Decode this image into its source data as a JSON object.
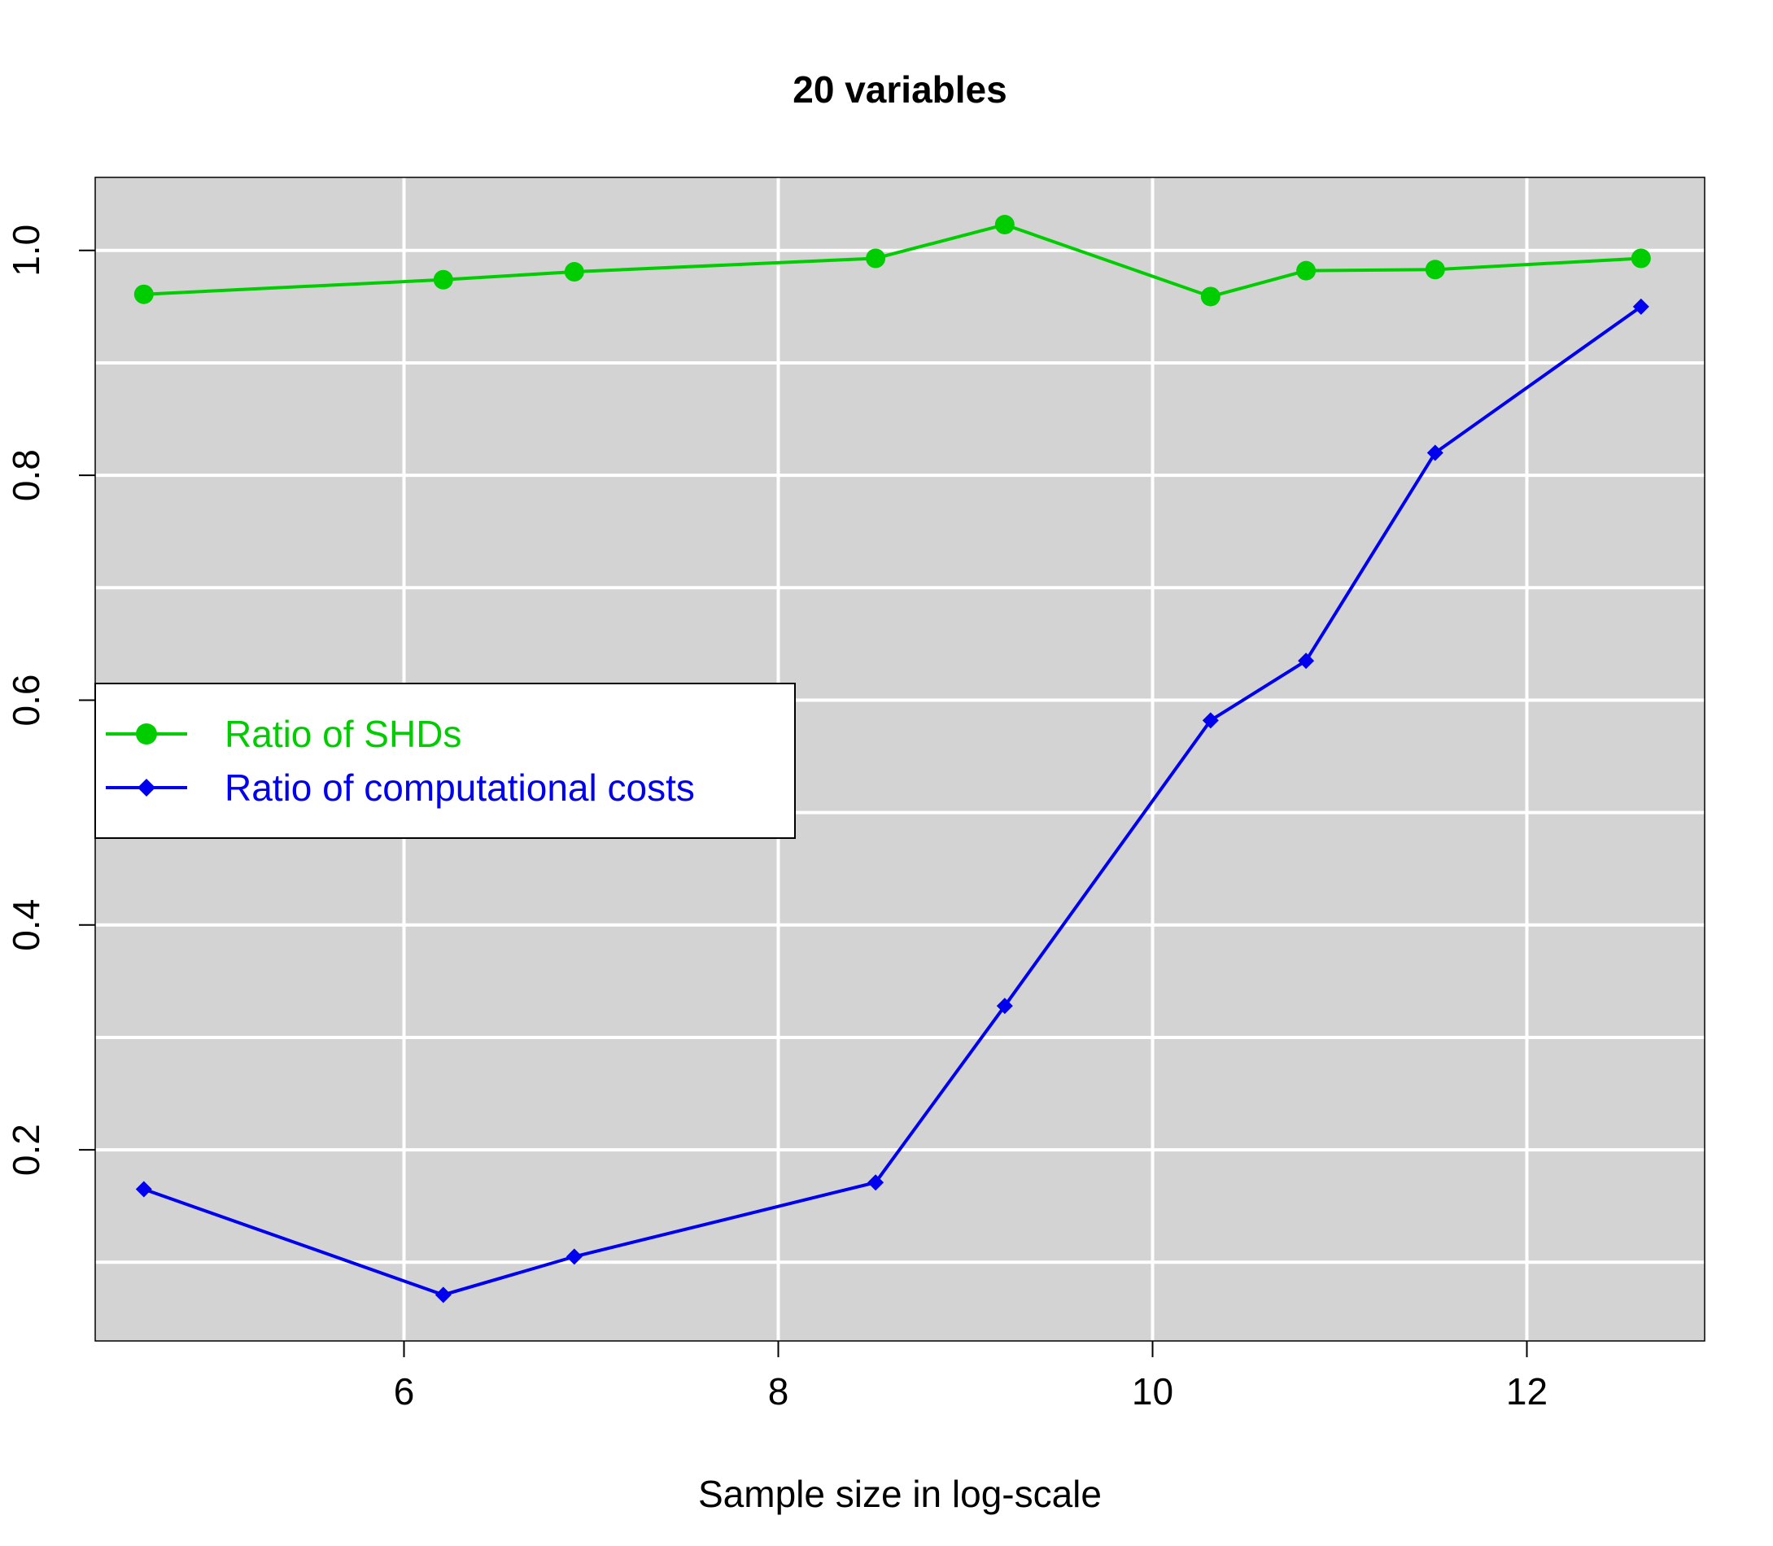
{
  "chart_data": {
    "type": "line",
    "title": "20 variables",
    "xlabel": "Sample size in log-scale",
    "ylabel": "",
    "xlim": [
      4.35,
      12.95
    ],
    "ylim": [
      0.03,
      1.065
    ],
    "x_ticks": [
      6,
      8,
      10,
      12
    ],
    "y_ticks": [
      0.2,
      0.4,
      0.6,
      0.8,
      1.0
    ],
    "y_tick_labels": [
      "0.2",
      "0.4",
      "0.6",
      "0.8",
      "1.0"
    ],
    "grid": true,
    "grid_x": [
      6,
      8,
      10,
      12
    ],
    "grid_y": [
      0.1,
      0.2,
      0.3,
      0.4,
      0.5,
      0.6,
      0.7,
      0.8,
      0.9,
      1.0
    ],
    "legend_position": "left-middle",
    "background": "#d3d3d3",
    "x": [
      4.61,
      6.21,
      6.91,
      8.52,
      9.21,
      10.31,
      10.82,
      11.51,
      12.61
    ],
    "series": [
      {
        "name": "Ratio of SHDs",
        "color": "#00cd00",
        "marker": "circle",
        "values": [
          0.961,
          0.974,
          0.981,
          0.993,
          1.023,
          0.959,
          0.982,
          0.983,
          0.993
        ]
      },
      {
        "name": "Ratio of computational costs",
        "color": "#0000ee",
        "marker": "diamond",
        "values": [
          0.165,
          0.071,
          0.105,
          0.171,
          0.328,
          0.582,
          0.635,
          0.82,
          0.95
        ]
      }
    ]
  }
}
